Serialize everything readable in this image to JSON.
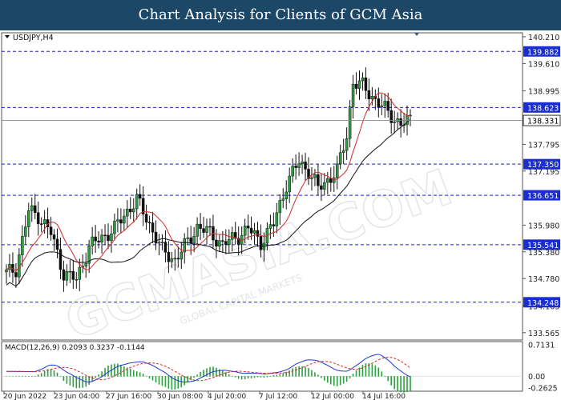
{
  "banner": {
    "title": "Chart Analysis for Clients of GCM Asia"
  },
  "watermark": {
    "text": "GCMASIA.COM",
    "sub": "GLOBAL CAPITAL MARKETS"
  },
  "chart_data": [
    {
      "type": "candlestick",
      "title": "USDJPY,H4",
      "ylim": [
        133.4,
        140.3
      ],
      "y_ticks": [
        "140.210",
        "139.610",
        "138.995",
        "137.795",
        "137.195",
        "135.980",
        "135.380",
        "134.780",
        "134.165",
        "133.565"
      ],
      "price_levels": [
        "139.882",
        "138.623",
        "137.350",
        "136.651",
        "135.541",
        "134.248"
      ],
      "current_price": "138.331",
      "x_tick_labels": [
        "20 Jun 2022",
        "23 Jun 04:00",
        "27 Jun 16:00",
        "30 Jun 08:00",
        "4 Jul 20:00",
        "7 Jul 12:00",
        "12 Jul 00:00",
        "14 Jul 16:00"
      ],
      "colors": {
        "up": "#2e9e40",
        "down": "#111111",
        "ma_fast": "#d42a2a",
        "ma_slow": "#111111",
        "levels": "#2020c0",
        "label_bg": "#1a2ed0"
      }
    },
    {
      "type": "line",
      "title": "MACD(12,26,9) 0.2093 0.3237 -0.1144",
      "ylim": [
        -0.34,
        0.78
      ],
      "y_ticks": [
        "0.7131",
        "0.00",
        "-0.2625"
      ],
      "series": [
        {
          "name": "MACD",
          "color": "#1f38d8"
        },
        {
          "name": "Signal",
          "color": "#d42a2a"
        }
      ],
      "histogram_color": "#2e9e40"
    }
  ]
}
